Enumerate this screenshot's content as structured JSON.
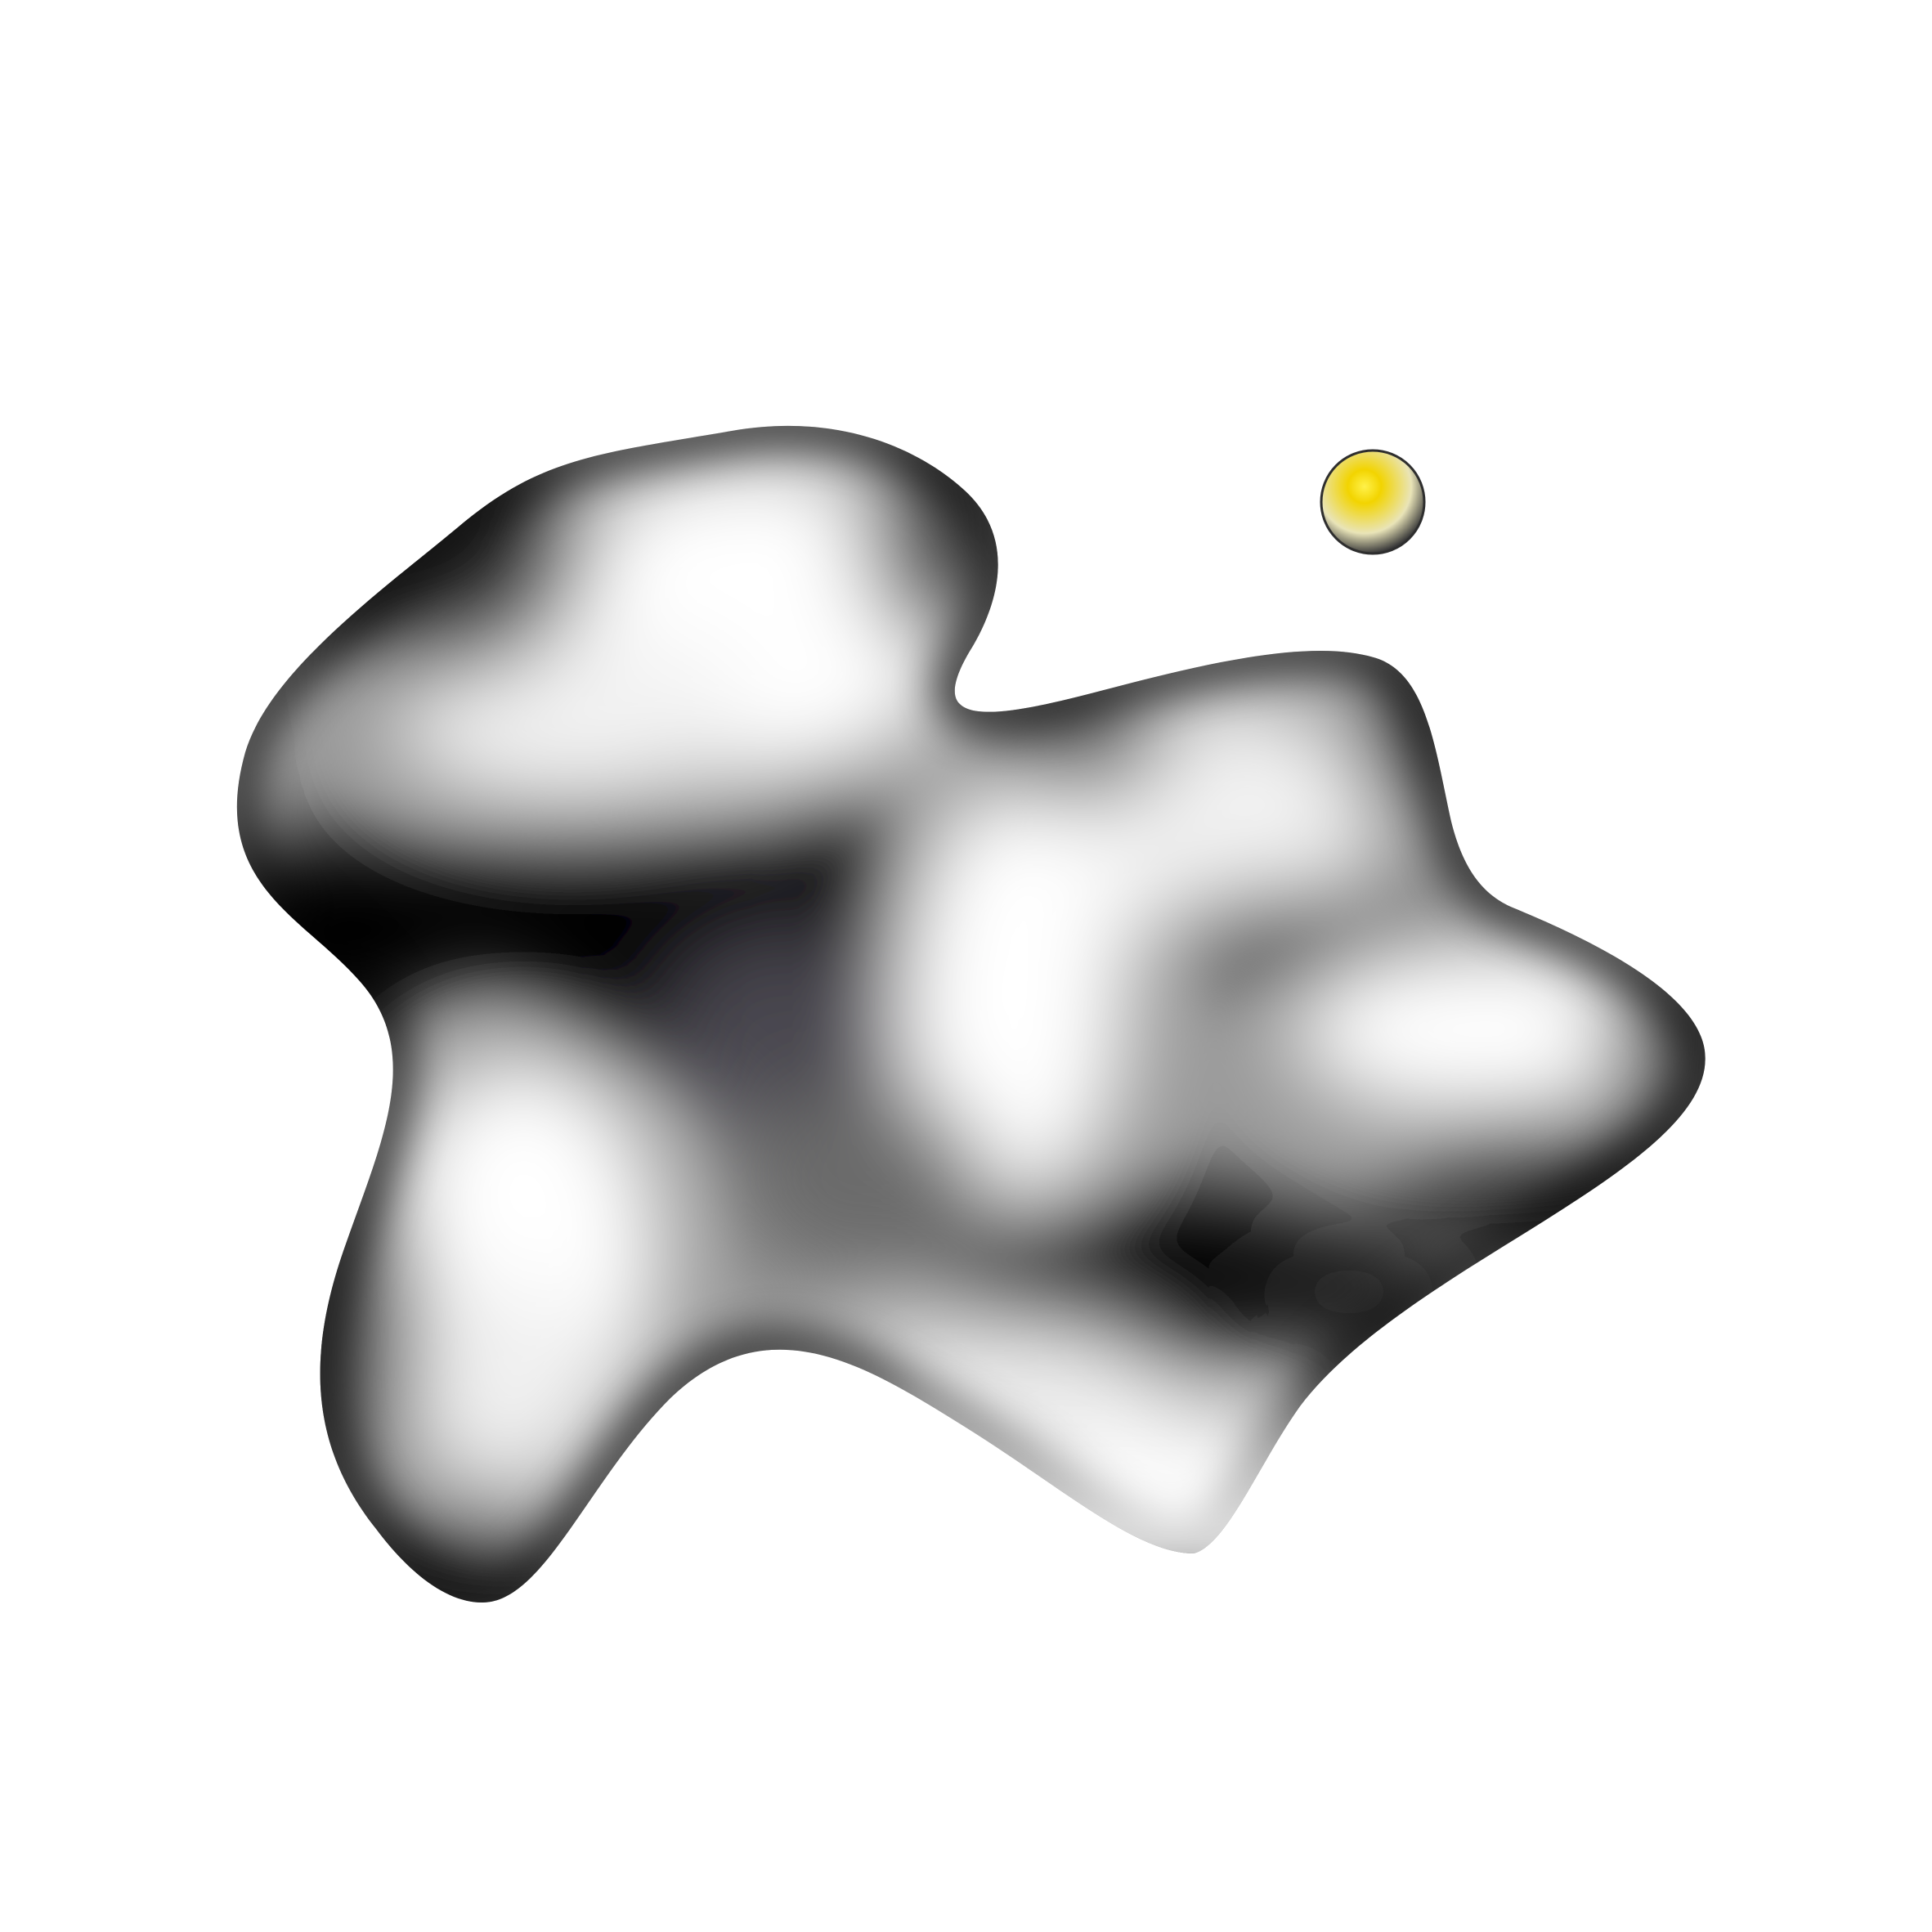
{
  "scene": {
    "background_color": "#ffffff",
    "blob": {
      "icon": "abstract-blob-shape",
      "colors": {
        "dark": "#000000",
        "mid": "#7a7a7a",
        "light": "#ffffff",
        "violet_tint": "#4a4650"
      }
    },
    "orb": {
      "icon": "yellow-sphere",
      "colors": {
        "highlight": "#fff14a",
        "core": "#f2d400",
        "body": "#e9e4b8",
        "rim": "#3a3a3a"
      }
    }
  }
}
